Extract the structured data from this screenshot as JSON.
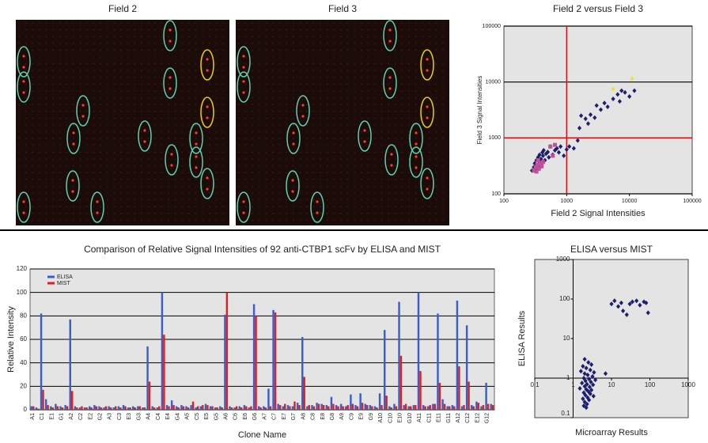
{
  "panels": [
    {
      "title": "Field 2"
    },
    {
      "title": "Field 3"
    }
  ],
  "chart_data": [
    {
      "type": "scatter",
      "title": "Field 2 versus Field 3",
      "xlabel": "Field 2 Signal Intensities",
      "ylabel": "Field 3 Signal Intensities",
      "log_x": true,
      "log_y": true,
      "xlim": [
        100,
        100000
      ],
      "ylim": [
        100,
        100000
      ],
      "xticks": [
        100,
        1000,
        10000,
        100000
      ],
      "yticks": [
        100,
        1000,
        10000,
        100000
      ],
      "grid": true,
      "reference_lines": {
        "x": 1000,
        "y": 1000,
        "color": "#e01010"
      },
      "series": [
        {
          "color": "#1c1f6e",
          "marker": "diamond",
          "x": [
            280,
            300,
            310,
            320,
            330,
            340,
            350,
            360,
            370,
            380,
            390,
            400,
            410,
            420,
            430,
            450,
            470,
            500,
            520,
            550,
            600,
            650,
            700,
            750,
            800,
            900,
            1000,
            1100,
            1300,
            1500,
            1600,
            1700,
            2000,
            2200,
            2400,
            2800,
            3000,
            3500,
            4000,
            4500,
            5500,
            6500,
            7000,
            7500,
            8500,
            10000,
            12000
          ],
          "y": [
            260,
            300,
            350,
            280,
            400,
            320,
            450,
            380,
            500,
            300,
            420,
            350,
            550,
            480,
            600,
            400,
            520,
            560,
            450,
            700,
            500,
            600,
            650,
            550,
            700,
            480,
            620,
            700,
            650,
            900,
            1500,
            2500,
            2200,
            1800,
            2600,
            2300,
            3800,
            3200,
            4200,
            3600,
            5000,
            6000,
            4500,
            7000,
            6500,
            5500,
            7000
          ]
        },
        {
          "color": "#c0509a",
          "marker": "square",
          "x": [
            300,
            320,
            340,
            360,
            380,
            400,
            420,
            330,
            350,
            550,
            650,
            600
          ],
          "y": [
            260,
            300,
            330,
            280,
            350,
            310,
            370,
            250,
            400,
            700,
            750,
            480
          ]
        },
        {
          "color": "#f0e030",
          "marker": "diamond",
          "x": [
            5500,
            11000
          ],
          "y": [
            7500,
            11500
          ]
        }
      ]
    },
    {
      "type": "bar",
      "title": "Comparison of Relative Signal Intensities of 92 anti-CTBP1 scFv by ELISA and MIST",
      "xlabel": "Clone Name",
      "ylabel": "Relative Intensity",
      "ylim": [
        0,
        120
      ],
      "yticks": [
        0,
        20,
        40,
        60,
        80,
        100,
        120
      ],
      "grid": true,
      "legend": "top-left",
      "categories": [
        "A1",
        null,
        "C1",
        null,
        "E1",
        null,
        "G1",
        null,
        "A2",
        null,
        "C2",
        null,
        "E2",
        null,
        "G2",
        null,
        "A3",
        null,
        "C3",
        null,
        "E3",
        null,
        "G3",
        null,
        "A4",
        null,
        "C4",
        null,
        "E4",
        null,
        "G4",
        null,
        "A5",
        null,
        "C5",
        null,
        "E5",
        null,
        "G5",
        null,
        "A6",
        null,
        "C6",
        null,
        "E6",
        null,
        "G6",
        null,
        "A7",
        null,
        "C7",
        null,
        "E7",
        null,
        "G7",
        null,
        "A8",
        null,
        "C8",
        null,
        "E8",
        null,
        "G8",
        null,
        "A9",
        null,
        "C9",
        null,
        "E9",
        null,
        "G9",
        null,
        "A10",
        null,
        "C10",
        null,
        "E10",
        null,
        "G10",
        null,
        "A11",
        null,
        "C11",
        null,
        "E11",
        null,
        "G11",
        null,
        "A12",
        null,
        "C12",
        null,
        "E12",
        null,
        "G12",
        null
      ],
      "series": [
        {
          "name": "ELISA",
          "color": "#3a5fcd",
          "values": [
            3,
            2,
            82,
            9,
            3,
            5,
            3,
            4,
            77,
            3,
            2,
            2,
            3,
            4,
            3,
            2,
            3,
            2,
            3,
            4,
            2,
            3,
            3,
            2,
            54,
            3,
            2,
            100,
            4,
            8,
            3,
            4,
            3,
            4,
            2,
            3,
            5,
            3,
            2,
            3,
            81,
            3,
            2,
            3,
            4,
            2,
            90,
            3,
            3,
            18,
            85,
            5,
            3,
            4,
            3,
            6,
            62,
            3,
            4,
            6,
            5,
            4,
            11,
            4,
            5,
            3,
            13,
            4,
            14,
            5,
            4,
            3,
            14,
            68,
            3,
            5,
            92,
            4,
            3,
            4,
            100,
            4,
            3,
            5,
            82,
            9,
            3,
            4,
            93,
            3,
            72,
            4,
            7,
            3,
            23,
            5
          ]
        },
        {
          "name": "MIST",
          "color": "#e02020",
          "values": [
            3,
            1,
            17,
            4,
            2,
            3,
            2,
            3,
            16,
            2,
            3,
            2,
            2,
            3,
            2,
            3,
            2,
            3,
            2,
            3,
            2,
            2,
            3,
            2,
            24,
            2,
            3,
            64,
            3,
            4,
            2,
            3,
            2,
            7,
            3,
            4,
            4,
            3,
            2,
            2,
            100,
            2,
            3,
            2,
            3,
            3,
            80,
            2,
            2,
            3,
            83,
            4,
            5,
            3,
            7,
            4,
            28,
            4,
            3,
            5,
            4,
            3,
            5,
            3,
            3,
            4,
            5,
            3,
            6,
            4,
            3,
            2,
            4,
            12,
            2,
            3,
            46,
            5,
            3,
            4,
            33,
            3,
            4,
            5,
            23,
            5,
            3,
            3,
            37,
            4,
            24,
            3,
            6,
            4,
            5,
            4
          ]
        }
      ]
    },
    {
      "type": "scatter",
      "title": "ELISA versus MIST",
      "xlabel": "Microarray Results",
      "ylabel": "ELISA Results",
      "log_x": true,
      "log_y": true,
      "xlim": [
        0.1,
        1000
      ],
      "ylim": [
        0.1,
        1000
      ],
      "xticks": [
        0.1,
        1,
        10,
        100,
        1000
      ],
      "yticks": [
        0.1,
        1,
        10,
        100,
        1000
      ],
      "grid": false,
      "axis_cross": {
        "x": 1,
        "y": 1
      },
      "series": [
        {
          "color": "#1c1f6e",
          "marker": "diamond",
          "x": [
            10,
            12,
            15,
            18,
            20,
            25,
            30,
            35,
            45,
            55,
            70,
            80,
            90,
            2,
            2.5,
            1.8,
            3,
            2.2,
            2.8,
            1.6,
            3.5,
            2,
            2.4,
            3.2,
            1.9,
            2.6,
            3.8,
            2.1,
            2.9,
            1.7,
            2.3,
            3.3,
            2.0,
            2.7,
            1.5,
            2.2,
            3.0,
            2.5,
            1.9,
            2.8,
            2.1,
            3.4,
            2.4,
            1.8,
            2.6,
            2.0,
            2.3,
            1.9,
            2.2,
            7
          ],
          "y": [
            75,
            90,
            65,
            80,
            50,
            40,
            75,
            85,
            90,
            70,
            85,
            80,
            45,
            3,
            2.5,
            2,
            2.2,
            1.8,
            1.6,
            1.5,
            1.4,
            1.3,
            1.2,
            1.1,
            1.0,
            0.95,
            0.9,
            0.85,
            0.8,
            0.75,
            0.7,
            0.68,
            0.62,
            0.6,
            0.55,
            0.52,
            0.5,
            0.46,
            0.43,
            0.4,
            0.37,
            0.35,
            0.32,
            0.3,
            0.28,
            0.25,
            0.22,
            0.2,
            0.18,
            1.3
          ]
        }
      ]
    }
  ]
}
